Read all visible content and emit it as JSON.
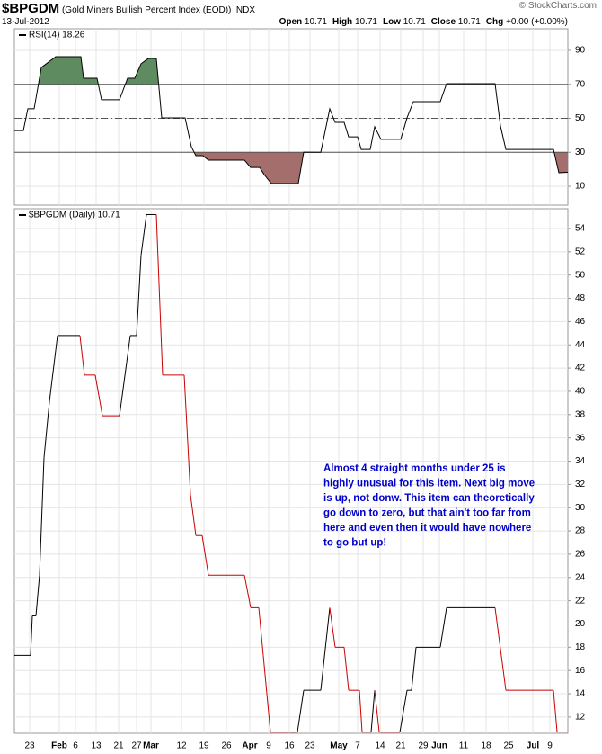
{
  "header": {
    "symbol": "$BPGDM",
    "name": "(Gold Miners Bullish Percent Index (EOD))",
    "exchange": "INDX",
    "date": "13-Jul-2012",
    "quote": [
      {
        "label": "Open",
        "value": "10.71"
      },
      {
        "label": "High",
        "value": "10.71"
      },
      {
        "label": "Low",
        "value": "10.71"
      },
      {
        "label": "Close",
        "value": "10.71"
      },
      {
        "label": "Chg",
        "value": "+0.00 (+0.00%)"
      }
    ],
    "credit": "© StockCharts.com"
  },
  "chart_data": [
    {
      "type": "line",
      "xlim": [
        0,
        123.2
      ],
      "ylim": [
        -1.1,
        102.7
      ],
      "yticks": [
        10,
        30,
        50,
        70,
        90
      ],
      "grid": true,
      "overbought": 70,
      "oversold": 30,
      "midline": 50,
      "overbought_color": "#5e8b60",
      "oversold_color": "#a46e6c",
      "series": [
        {
          "name": "RSI(14) 18.26",
          "color": "#000000",
          "x": [
            0,
            2,
            3,
            4.4,
            6,
            9.2,
            14.8,
            15.4,
            18.4,
            19.4,
            23.4,
            25.2,
            26.8,
            28.2,
            29.8,
            31.6,
            32.8,
            38,
            39.4,
            40.4,
            42,
            43.2,
            51.2,
            52.6,
            54.6,
            55.6,
            57.2,
            63.2,
            64.4,
            68.2,
            70.2,
            71.4,
            73.4,
            74.4,
            76.4,
            77.2,
            79.2,
            80.2,
            81.6,
            86,
            87.4,
            88.8,
            94.8,
            96.2,
            107,
            108.2,
            109.4,
            120,
            121.2,
            123.2
          ],
          "values": [
            42.8,
            42.8,
            55.6,
            55.6,
            79.9,
            86.3,
            86.3,
            73.6,
            73.6,
            60.9,
            60.9,
            73.6,
            73.6,
            82.1,
            85.2,
            85.2,
            50.3,
            50.3,
            33.3,
            28,
            28,
            25.4,
            25.4,
            21.1,
            21.1,
            16.9,
            11.6,
            11.6,
            30.1,
            30,
            55.6,
            47.6,
            47.6,
            39.1,
            39.1,
            31.7,
            31.7,
            45,
            37.6,
            37.6,
            50.3,
            59.8,
            59.8,
            70.4,
            70.4,
            45.5,
            31.7,
            31.7,
            18,
            18.26
          ]
        }
      ]
    },
    {
      "type": "line",
      "xlim": [
        0,
        123.2
      ],
      "ylim": [
        10.6,
        55.7
      ],
      "yticks": [
        12,
        14,
        16,
        18,
        20,
        22,
        24,
        26,
        28,
        30,
        32,
        34,
        36,
        38,
        40,
        42,
        44,
        46,
        48,
        50,
        52,
        54
      ],
      "grid": true,
      "xticks": [
        {
          "value": 3.4,
          "label": "23"
        },
        {
          "value": 10,
          "label": "Feb"
        },
        {
          "value": 13.6,
          "label": "6"
        },
        {
          "value": 18.2,
          "label": "13"
        },
        {
          "value": 23.2,
          "label": "21"
        },
        {
          "value": 27.2,
          "label": "27"
        },
        {
          "value": 30.4,
          "label": "Mar"
        },
        {
          "value": 37.2,
          "label": "12"
        },
        {
          "value": 42.2,
          "label": "19"
        },
        {
          "value": 47.2,
          "label": "26"
        },
        {
          "value": 52.4,
          "label": "Apr"
        },
        {
          "value": 56.6,
          "label": "9"
        },
        {
          "value": 61.2,
          "label": "16"
        },
        {
          "value": 65.8,
          "label": "23"
        },
        {
          "value": 72.2,
          "label": "May"
        },
        {
          "value": 76.4,
          "label": "7"
        },
        {
          "value": 81.4,
          "label": "14"
        },
        {
          "value": 86,
          "label": "21"
        },
        {
          "value": 91,
          "label": "29"
        },
        {
          "value": 94.6,
          "label": "Jun"
        },
        {
          "value": 100,
          "label": "11"
        },
        {
          "value": 105,
          "label": "18"
        },
        {
          "value": 110,
          "label": "25"
        },
        {
          "value": 115.4,
          "label": "Jul"
        },
        {
          "value": 119.2,
          "label": "9"
        }
      ],
      "up_color": "#000000",
      "down_color": "#cc0000",
      "annotation": [
        "Almost 4 straight months under 25 is",
        "highly unusual for this item. Next big move",
        "is up, not donw. This item can theoretically",
        "go down to zero, but that ain't too far from",
        "here and even then it would have nowhere",
        "to go but up!"
      ],
      "annotation_color": "#0000cc",
      "series": [
        {
          "name": "$BPGDM (Daily) 10.71",
          "color": "#000000",
          "x": [
            0,
            3.6,
            4,
            4.8,
            5.6,
            6.6,
            7.8,
            9.6,
            14.6,
            15.6,
            18,
            19.6,
            23.4,
            25,
            25.8,
            27.2,
            28.2,
            29.4,
            31.6,
            33,
            37.8,
            39.2,
            40.4,
            41.8,
            43.2,
            51.2,
            52.6,
            54.4,
            55.4,
            57,
            63,
            64.4,
            68.2,
            70.2,
            71.4,
            73.4,
            74.4,
            76.8,
            77.4,
            79.4,
            80.2,
            81.2,
            85.8,
            87.4,
            88.4,
            89.4,
            94.8,
            96.2,
            107,
            109.4,
            120,
            120.8,
            123.2
          ],
          "values": [
            17.3,
            17.3,
            20.7,
            20.7,
            24.2,
            34.3,
            39.1,
            44.8,
            44.8,
            41.4,
            41.4,
            37.9,
            37.9,
            42.5,
            44.8,
            44.8,
            51.7,
            55.2,
            55.2,
            41.4,
            41.4,
            31.1,
            27.6,
            27.6,
            24.2,
            24.2,
            21.4,
            21.4,
            17.3,
            10.7,
            10.7,
            14.3,
            14.3,
            21.4,
            18,
            18,
            14.3,
            14.3,
            10.7,
            10.7,
            14.3,
            10.7,
            10.7,
            14.3,
            14.3,
            18,
            18,
            21.4,
            21.4,
            14.3,
            14.3,
            10.71,
            10.71
          ]
        }
      ]
    }
  ]
}
